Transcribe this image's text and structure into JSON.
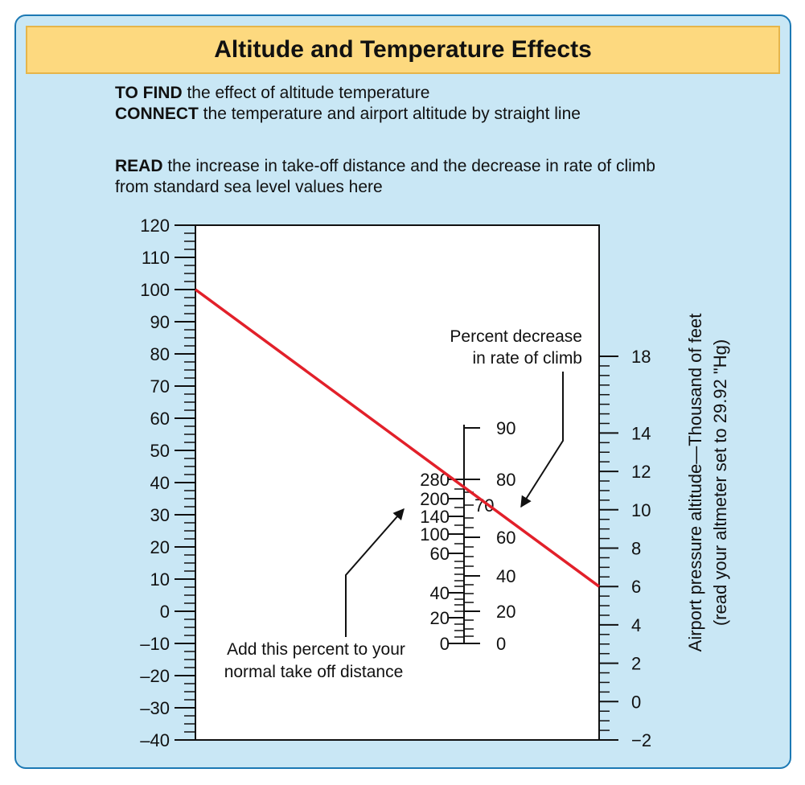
{
  "title": "Altitude and Temperature Effects",
  "instructions": {
    "find_bold": "TO FIND",
    "find_text": " the effect of altitude temperature",
    "connect_bold": "CONNECT",
    "connect_text": " the temperature and airport altitude by straight line",
    "read_bold": "READ",
    "read_text": " the increase in take-off distance and the decrease in rate of climb from standard sea level values here"
  },
  "labels": {
    "rate_of_climb": [
      "Percent decrease",
      "in rate of climb"
    ],
    "takeoff": [
      "Add this percent to your",
      "normal take off distance"
    ],
    "altitude_axis": [
      "Airport pressure altitude—Thousand of feet",
      "(read your altmeter set to 29.92 \"Hg)"
    ]
  },
  "chart_data": {
    "type": "nomogram",
    "scales": {
      "temperature": {
        "ticks": [
          "120",
          "110",
          "100",
          "90",
          "80",
          "70",
          "60",
          "50",
          "40",
          "30",
          "20",
          "10",
          "0",
          "–10",
          "–20",
          "–30",
          "–40"
        ],
        "range": [
          -40,
          120
        ]
      },
      "takeoff_increase_percent": {
        "ticks": [
          "0",
          "20",
          "40",
          "60",
          "100",
          "140",
          "200",
          "280"
        ]
      },
      "climb_decrease_percent": {
        "ticks": [
          "0",
          "20",
          "40",
          "60",
          "70",
          "80",
          "90"
        ]
      },
      "pressure_altitude_kft": {
        "ticks": [
          "18",
          "14",
          "12",
          "10",
          "8",
          "6",
          "4",
          "2",
          "0",
          "−2"
        ],
        "range": [
          -2,
          18
        ]
      }
    },
    "example_line": {
      "color": "#e2202a",
      "temperature": 100,
      "pressure_altitude_kft": 6,
      "takeoff_increase_percent": 280,
      "climb_decrease_percent": 73
    }
  }
}
